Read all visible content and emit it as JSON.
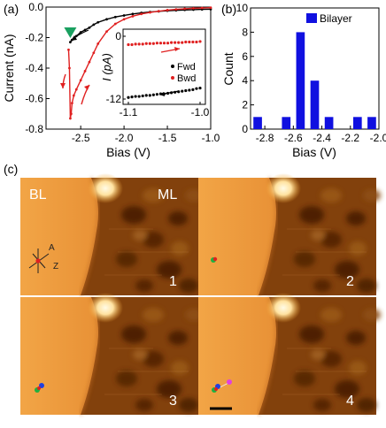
{
  "panel_labels": {
    "a": "(a)",
    "b": "(b)",
    "c": "(c)"
  },
  "chart_data": [
    {
      "type": "line",
      "title": "",
      "xlabel": "Bias (V)",
      "ylabel": "Current (nA)",
      "xlim": [
        -2.9,
        -1.0
      ],
      "ylim": [
        -0.8,
        0.0
      ],
      "xticks": [
        "-2.5",
        "-2.0",
        "-1.5",
        "-1.0"
      ],
      "yticks": [
        "0.0",
        "-0.2",
        "-0.4",
        "-0.6",
        "-0.8"
      ],
      "series": [
        {
          "name": "Fwd",
          "color": "#000000",
          "x": [
            -2.62,
            -2.6,
            -2.55,
            -2.5,
            -2.45,
            -2.4,
            -2.35,
            -2.3,
            -2.2,
            -2.1,
            -2.0,
            -1.9,
            -1.8,
            -1.7,
            -1.6,
            -1.5,
            -1.4,
            -1.3,
            -1.2,
            -1.1,
            -1.0
          ],
          "y": [
            -0.23,
            -0.215,
            -0.19,
            -0.165,
            -0.15,
            -0.135,
            -0.115,
            -0.1,
            -0.08,
            -0.065,
            -0.055,
            -0.045,
            -0.038,
            -0.032,
            -0.028,
            -0.024,
            -0.021,
            -0.019,
            -0.017,
            -0.015,
            -0.014
          ]
        },
        {
          "name": "Bwd",
          "color": "#e02020",
          "x": [
            -1.0,
            -1.1,
            -1.2,
            -1.3,
            -1.4,
            -1.5,
            -1.6,
            -1.7,
            -1.8,
            -1.9,
            -2.0,
            -2.1,
            -2.2,
            -2.3,
            -2.35,
            -2.4,
            -2.45,
            -2.5,
            -2.55,
            -2.58,
            -2.6,
            -2.61,
            -2.62,
            -2.63,
            -2.64
          ],
          "y": [
            -0.004,
            -0.006,
            -0.008,
            -0.011,
            -0.015,
            -0.02,
            -0.027,
            -0.035,
            -0.045,
            -0.06,
            -0.08,
            -0.11,
            -0.16,
            -0.24,
            -0.3,
            -0.36,
            -0.42,
            -0.48,
            -0.54,
            -0.58,
            -0.63,
            -0.7,
            -0.73,
            -0.4,
            -0.28
          ]
        }
      ],
      "annotations": {
        "switch_marker": {
          "x": -2.62,
          "y": -0.18,
          "shape": "triangle-down",
          "color": "#1aa060"
        }
      }
    },
    {
      "type": "scatter",
      "title": "",
      "xlabel": "",
      "ylabel": "I (pA)",
      "xlim": [
        -1.1,
        -1.0
      ],
      "ylim": [
        -12,
        0
      ],
      "xticks": [
        "-1.1",
        "-1.0"
      ],
      "yticks": [
        "0",
        "-12"
      ],
      "legend": "inside-right",
      "series": [
        {
          "name": "Fwd",
          "color": "#000000",
          "x": [
            -1.1,
            -1.095,
            -1.09,
            -1.085,
            -1.08,
            -1.075,
            -1.07,
            -1.065,
            -1.06,
            -1.055,
            -1.05,
            -1.045,
            -1.04,
            -1.035,
            -1.03,
            -1.025,
            -1.02,
            -1.015,
            -1.01,
            -1.005,
            -1.0
          ],
          "y": [
            -11.7,
            -11.6,
            -11.5,
            -11.5,
            -11.4,
            -11.3,
            -11.3,
            -11.2,
            -11.1,
            -11.0,
            -11.0,
            -10.9,
            -10.8,
            -10.7,
            -10.6,
            -10.5,
            -10.4,
            -10.3,
            -10.2,
            -10.0,
            -9.9
          ]
        },
        {
          "name": "Bwd",
          "color": "#e02020",
          "x": [
            -1.1,
            -1.095,
            -1.09,
            -1.085,
            -1.08,
            -1.075,
            -1.07,
            -1.065,
            -1.06,
            -1.055,
            -1.05,
            -1.045,
            -1.04,
            -1.035,
            -1.03,
            -1.025,
            -1.02,
            -1.015,
            -1.01,
            -1.005,
            -1.0
          ],
          "y": [
            -1.6,
            -1.6,
            -1.5,
            -1.5,
            -1.5,
            -1.4,
            -1.4,
            -1.4,
            -1.3,
            -1.3,
            -1.3,
            -1.3,
            -1.2,
            -1.2,
            -1.2,
            -1.2,
            -1.1,
            -1.1,
            -1.1,
            -1.1,
            -1.0
          ]
        }
      ]
    },
    {
      "type": "bar",
      "title": "",
      "xlabel": "Bias (V)",
      "ylabel": "Count",
      "xlim": [
        -2.9,
        -2.0
      ],
      "ylim": [
        0,
        10
      ],
      "xticks": [
        "-2.8",
        "-2.6",
        "-2.4",
        "-2.2",
        "-2.0"
      ],
      "yticks": [
        "0",
        "2",
        "4",
        "6",
        "8",
        "10"
      ],
      "legend": "top-right",
      "series": [
        {
          "name": "Bilayer",
          "color": "#1010e0",
          "bin_centers": [
            -2.85,
            -2.65,
            -2.55,
            -2.45,
            -2.35,
            -2.15,
            -2.05
          ],
          "values": [
            1,
            1,
            8,
            4,
            1,
            1,
            1
          ]
        }
      ]
    }
  ],
  "stm": {
    "region_labels": {
      "bilayer": "BL",
      "monolayer": "ML"
    },
    "axes_labels": {
      "a": "A",
      "z": "Z"
    },
    "frames": [
      {
        "number": "1"
      },
      {
        "number": "2"
      },
      {
        "number": "3"
      },
      {
        "number": "4"
      }
    ],
    "marker_colors": {
      "red": "#e02020",
      "green": "#20b040",
      "blue": "#2040e0",
      "magenta": "#e040e0"
    }
  }
}
